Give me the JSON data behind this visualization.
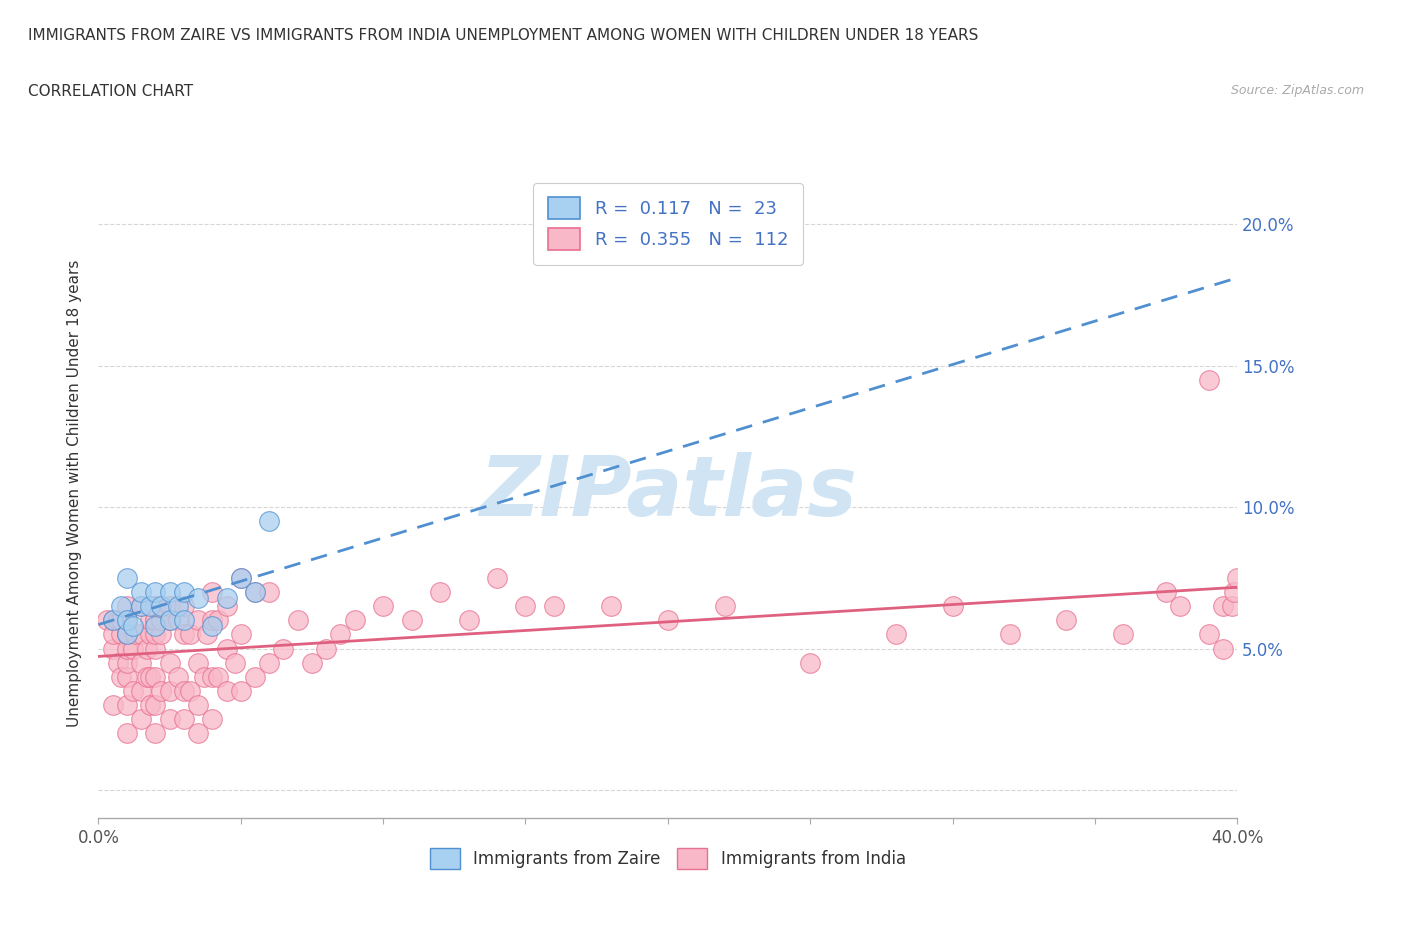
{
  "title_line1": "IMMIGRANTS FROM ZAIRE VS IMMIGRANTS FROM INDIA UNEMPLOYMENT AMONG WOMEN WITH CHILDREN UNDER 18 YEARS",
  "title_line2": "CORRELATION CHART",
  "source_text": "Source: ZipAtlas.com",
  "ylabel": "Unemployment Among Women with Children Under 18 years",
  "xlim": [
    0.0,
    0.4
  ],
  "ylim": [
    -0.01,
    0.22
  ],
  "yticks": [
    0.0,
    0.05,
    0.1,
    0.15,
    0.2
  ],
  "ytick_labels": [
    "",
    "5.0%",
    "10.0%",
    "15.0%",
    "20.0%"
  ],
  "xticks": [
    0.0,
    0.05,
    0.1,
    0.15,
    0.2,
    0.25,
    0.3,
    0.35,
    0.4
  ],
  "xtick_labels_show": [
    "0.0%",
    "",
    "",
    "",
    "",
    "",
    "",
    "",
    "40.0%"
  ],
  "zaire_R": 0.117,
  "zaire_N": 23,
  "india_R": 0.355,
  "india_N": 112,
  "zaire_color": "#A8D0F0",
  "india_color": "#F8B8C8",
  "zaire_edge_color": "#5090D0",
  "india_edge_color": "#E87090",
  "zaire_line_color": "#5090D0",
  "india_line_color": "#E06080",
  "watermark_color": "#D0E4F4",
  "background_color": "#FFFFFF",
  "zaire_x": [
    0.005,
    0.008,
    0.01,
    0.01,
    0.01,
    0.012,
    0.015,
    0.015,
    0.018,
    0.02,
    0.02,
    0.022,
    0.025,
    0.025,
    0.028,
    0.03,
    0.03,
    0.035,
    0.04,
    0.045,
    0.05,
    0.055,
    0.06
  ],
  "zaire_y": [
    0.06,
    0.065,
    0.055,
    0.06,
    0.075,
    0.058,
    0.065,
    0.07,
    0.065,
    0.058,
    0.07,
    0.065,
    0.06,
    0.07,
    0.065,
    0.06,
    0.07,
    0.068,
    0.058,
    0.068,
    0.075,
    0.07,
    0.095
  ],
  "india_x": [
    0.003,
    0.005,
    0.005,
    0.005,
    0.005,
    0.007,
    0.007,
    0.008,
    0.008,
    0.008,
    0.01,
    0.01,
    0.01,
    0.01,
    0.01,
    0.01,
    0.01,
    0.01,
    0.01,
    0.01,
    0.012,
    0.012,
    0.013,
    0.015,
    0.015,
    0.015,
    0.015,
    0.015,
    0.017,
    0.017,
    0.018,
    0.018,
    0.018,
    0.018,
    0.02,
    0.02,
    0.02,
    0.02,
    0.02,
    0.02,
    0.02,
    0.02,
    0.022,
    0.022,
    0.022,
    0.025,
    0.025,
    0.025,
    0.025,
    0.025,
    0.028,
    0.028,
    0.03,
    0.03,
    0.03,
    0.03,
    0.032,
    0.032,
    0.035,
    0.035,
    0.035,
    0.035,
    0.037,
    0.038,
    0.04,
    0.04,
    0.04,
    0.04,
    0.042,
    0.042,
    0.045,
    0.045,
    0.045,
    0.048,
    0.05,
    0.05,
    0.05,
    0.055,
    0.055,
    0.06,
    0.06,
    0.065,
    0.07,
    0.075,
    0.08,
    0.085,
    0.09,
    0.1,
    0.11,
    0.12,
    0.13,
    0.14,
    0.15,
    0.16,
    0.18,
    0.2,
    0.22,
    0.25,
    0.28,
    0.3,
    0.32,
    0.34,
    0.36,
    0.375,
    0.38,
    0.39,
    0.39,
    0.395,
    0.395,
    0.398,
    0.399,
    0.4
  ],
  "india_y": [
    0.06,
    0.03,
    0.05,
    0.055,
    0.06,
    0.045,
    0.06,
    0.04,
    0.055,
    0.06,
    0.02,
    0.03,
    0.04,
    0.045,
    0.05,
    0.055,
    0.055,
    0.06,
    0.06,
    0.065,
    0.035,
    0.05,
    0.055,
    0.025,
    0.035,
    0.045,
    0.055,
    0.065,
    0.04,
    0.05,
    0.03,
    0.04,
    0.055,
    0.06,
    0.02,
    0.03,
    0.04,
    0.05,
    0.055,
    0.06,
    0.06,
    0.065,
    0.035,
    0.055,
    0.06,
    0.025,
    0.035,
    0.045,
    0.06,
    0.065,
    0.04,
    0.06,
    0.025,
    0.035,
    0.055,
    0.065,
    0.035,
    0.055,
    0.02,
    0.03,
    0.045,
    0.06,
    0.04,
    0.055,
    0.025,
    0.04,
    0.06,
    0.07,
    0.04,
    0.06,
    0.035,
    0.05,
    0.065,
    0.045,
    0.035,
    0.055,
    0.075,
    0.04,
    0.07,
    0.045,
    0.07,
    0.05,
    0.06,
    0.045,
    0.05,
    0.055,
    0.06,
    0.065,
    0.06,
    0.07,
    0.06,
    0.075,
    0.065,
    0.065,
    0.065,
    0.06,
    0.065,
    0.045,
    0.055,
    0.065,
    0.055,
    0.06,
    0.055,
    0.07,
    0.065,
    0.055,
    0.145,
    0.05,
    0.065,
    0.065,
    0.07,
    0.075
  ]
}
